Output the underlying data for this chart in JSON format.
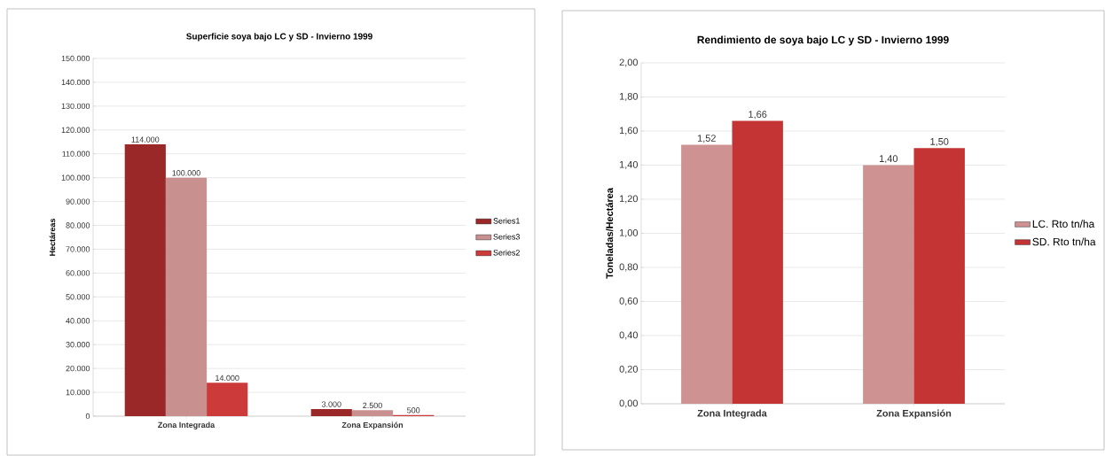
{
  "chart_data": [
    {
      "type": "bar",
      "title": "Superficie soya bajo LC y SD  -  Invierno 1999",
      "ylabel": "Hectáreas",
      "categories": [
        "Zona Integrada",
        "Zona Expansión"
      ],
      "series": [
        {
          "name": "Series1",
          "color": "#9a2828",
          "values": [
            114000,
            3000
          ],
          "value_labels": [
            "114.000",
            "3.000"
          ]
        },
        {
          "name": "Series3",
          "color": "#c99090",
          "values": [
            100000,
            2500
          ],
          "value_labels": [
            "100.000",
            "2.500"
          ]
        },
        {
          "name": "Series2",
          "color": "#cc3a3a",
          "values": [
            14000,
            500
          ],
          "value_labels": [
            "14.000",
            "500"
          ]
        }
      ],
      "ylim": [
        0,
        150000
      ],
      "yticks": [
        {
          "value": 0,
          "label": "0"
        },
        {
          "value": 10000,
          "label": "10.000"
        },
        {
          "value": 20000,
          "label": "20.000"
        },
        {
          "value": 30000,
          "label": "30.000"
        },
        {
          "value": 40000,
          "label": "40.000"
        },
        {
          "value": 50000,
          "label": "50.000"
        },
        {
          "value": 60000,
          "label": "60.000"
        },
        {
          "value": 70000,
          "label": "70.000"
        },
        {
          "value": 80000,
          "label": "80.000"
        },
        {
          "value": 90000,
          "label": "90.000"
        },
        {
          "value": 100000,
          "label": "100.000"
        },
        {
          "value": 110000,
          "label": "110.000"
        },
        {
          "value": 120000,
          "label": "120.000"
        },
        {
          "value": 130000,
          "label": "130.000"
        },
        {
          "value": 140000,
          "label": "140.000"
        },
        {
          "value": 150000,
          "label": "150.000"
        }
      ],
      "grid": "y",
      "legend": "right"
    },
    {
      "type": "bar",
      "title": "Rendimiento de soya bajo LC y SD - Invierno 1999",
      "ylabel": "Toneladas/Hectárea",
      "categories": [
        "Zona Integrada",
        "Zona Expansión"
      ],
      "series": [
        {
          "name": "LC. Rto tn/ha",
          "color": "#cf9292",
          "values": [
            1.52,
            1.4
          ],
          "value_labels": [
            "1,52",
            "1,40"
          ]
        },
        {
          "name": "SD. Rto tn/ha",
          "color": "#c53434",
          "values": [
            1.66,
            1.5
          ],
          "value_labels": [
            "1,66",
            "1,50"
          ]
        }
      ],
      "ylim": [
        0,
        2
      ],
      "yticks": [
        {
          "value": 0,
          "label": "0,00"
        },
        {
          "value": 0.2,
          "label": "0,20"
        },
        {
          "value": 0.4,
          "label": "0,40"
        },
        {
          "value": 0.6,
          "label": "0,60"
        },
        {
          "value": 0.8,
          "label": "0,80"
        },
        {
          "value": 1.0,
          "label": "1,00"
        },
        {
          "value": 1.2,
          "label": "1,20"
        },
        {
          "value": 1.4,
          "label": "1,40"
        },
        {
          "value": 1.6,
          "label": "1,60"
        },
        {
          "value": 1.8,
          "label": "1,80"
        },
        {
          "value": 2.0,
          "label": "2,00"
        }
      ],
      "grid": "y",
      "legend": "right"
    }
  ]
}
